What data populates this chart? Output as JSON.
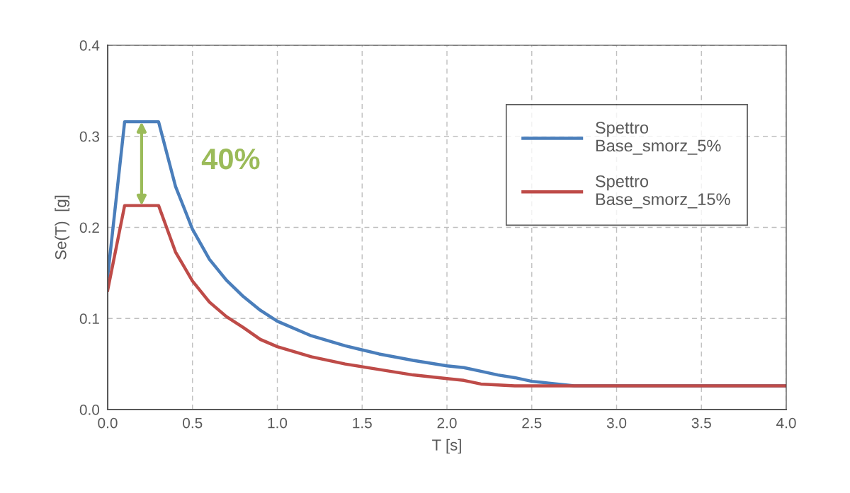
{
  "chart_data": {
    "type": "line",
    "xlabel": "T [s]",
    "ylabel": "Se(T)  [g]",
    "xlim": [
      0,
      4
    ],
    "ylim": [
      0,
      0.4
    ],
    "xticks": [
      {
        "value": 0,
        "label": "0.0"
      },
      {
        "value": 0.5,
        "label": "0.5"
      },
      {
        "value": 1,
        "label": "1.0"
      },
      {
        "value": 1.5,
        "label": "1.5"
      },
      {
        "value": 2,
        "label": "2.0"
      },
      {
        "value": 2.5,
        "label": "2.5"
      },
      {
        "value": 3,
        "label": "3.0"
      },
      {
        "value": 3.5,
        "label": "3.5"
      },
      {
        "value": 4,
        "label": "4.0"
      }
    ],
    "yticks": [
      {
        "value": 0,
        "label": "0.0"
      },
      {
        "value": 0.1,
        "label": "0.1"
      },
      {
        "value": 0.2,
        "label": "0.2"
      },
      {
        "value": 0.3,
        "label": "0.3"
      },
      {
        "value": 0.4,
        "label": "0.4"
      }
    ],
    "grid": true,
    "legend": "top right",
    "marker": "none",
    "line_style": "solid",
    "annotations": [
      "40%"
    ],
    "series": [
      {
        "name": "Spettro\nBase_smorz_5%",
        "color": "#4a7ebb",
        "x": [
          0,
          0.1,
          0.3,
          0.4,
          0.5,
          0.6,
          0.7,
          0.8,
          0.9,
          1.0,
          1.2,
          1.4,
          1.6,
          1.8,
          2.0,
          2.1,
          2.2,
          2.3,
          2.4,
          2.5,
          2.6,
          2.75,
          4.0
        ],
        "values": [
          0.146,
          0.316,
          0.316,
          0.245,
          0.198,
          0.165,
          0.142,
          0.124,
          0.109,
          0.097,
          0.081,
          0.07,
          0.061,
          0.054,
          0.048,
          0.046,
          0.042,
          0.038,
          0.035,
          0.031,
          0.029,
          0.026,
          0.026
        ]
      },
      {
        "name": "Spettro\nBase_smorz_15%",
        "color": "#be4b48",
        "x": [
          0,
          0.1,
          0.3,
          0.4,
          0.5,
          0.6,
          0.7,
          0.8,
          0.9,
          1.0,
          1.2,
          1.4,
          1.6,
          1.8,
          2.0,
          2.1,
          2.2,
          2.3,
          2.4,
          4.0
        ],
        "values": [
          0.131,
          0.224,
          0.224,
          0.173,
          0.141,
          0.118,
          0.102,
          0.09,
          0.077,
          0.069,
          0.058,
          0.05,
          0.044,
          0.038,
          0.034,
          0.032,
          0.028,
          0.027,
          0.026,
          0.026
        ]
      }
    ]
  }
}
